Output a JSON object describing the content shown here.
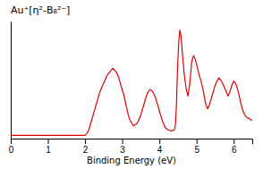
{
  "chart_data": {
    "type": "line",
    "title": "Au⁺[η²-B₈²⁻]",
    "xlabel": "Binding Energy (eV)",
    "color": "#dd0000",
    "xlim": [
      0,
      6.5
    ],
    "ylim": [
      -0.02,
      1.08
    ],
    "xticks": [
      0,
      1,
      2,
      3,
      4,
      5,
      6
    ],
    "tick_labels": "x",
    "x": [
      0.0,
      2.0,
      2.05,
      2.1,
      2.2,
      2.4,
      2.6,
      2.75,
      2.85,
      2.9,
      2.95,
      3.0,
      3.05,
      3.1,
      3.15,
      3.2,
      3.3,
      3.4,
      3.5,
      3.6,
      3.65,
      3.7,
      3.75,
      3.8,
      3.85,
      3.9,
      3.95,
      4.0,
      4.05,
      4.1,
      4.15,
      4.2,
      4.25,
      4.3,
      4.35,
      4.4,
      4.43,
      4.46,
      4.49,
      4.52,
      4.55,
      4.58,
      4.62,
      4.67,
      4.72,
      4.77,
      4.82,
      4.87,
      4.92,
      4.97,
      5.02,
      5.07,
      5.12,
      5.17,
      5.25,
      5.3,
      5.35,
      5.4,
      5.45,
      5.5,
      5.55,
      5.6,
      5.65,
      5.7,
      5.75,
      5.8,
      5.85,
      5.9,
      5.95,
      6.0,
      6.05,
      6.1,
      6.15,
      6.2,
      6.25,
      6.3,
      6.35,
      6.4,
      6.45,
      6.5
    ],
    "values": [
      0.01,
      0.01,
      0.03,
      0.06,
      0.18,
      0.42,
      0.58,
      0.64,
      0.6,
      0.56,
      0.5,
      0.44,
      0.38,
      0.3,
      0.22,
      0.16,
      0.1,
      0.12,
      0.2,
      0.32,
      0.38,
      0.42,
      0.44,
      0.43,
      0.4,
      0.36,
      0.3,
      0.24,
      0.18,
      0.13,
      0.09,
      0.07,
      0.06,
      0.055,
      0.055,
      0.06,
      0.1,
      0.3,
      0.65,
      0.88,
      1.0,
      0.95,
      0.78,
      0.58,
      0.45,
      0.38,
      0.5,
      0.7,
      0.76,
      0.72,
      0.65,
      0.58,
      0.52,
      0.45,
      0.3,
      0.26,
      0.3,
      0.36,
      0.42,
      0.48,
      0.52,
      0.55,
      0.53,
      0.5,
      0.46,
      0.42,
      0.38,
      0.42,
      0.48,
      0.52,
      0.5,
      0.45,
      0.38,
      0.3,
      0.24,
      0.2,
      0.18,
      0.17,
      0.16,
      0.15
    ]
  }
}
